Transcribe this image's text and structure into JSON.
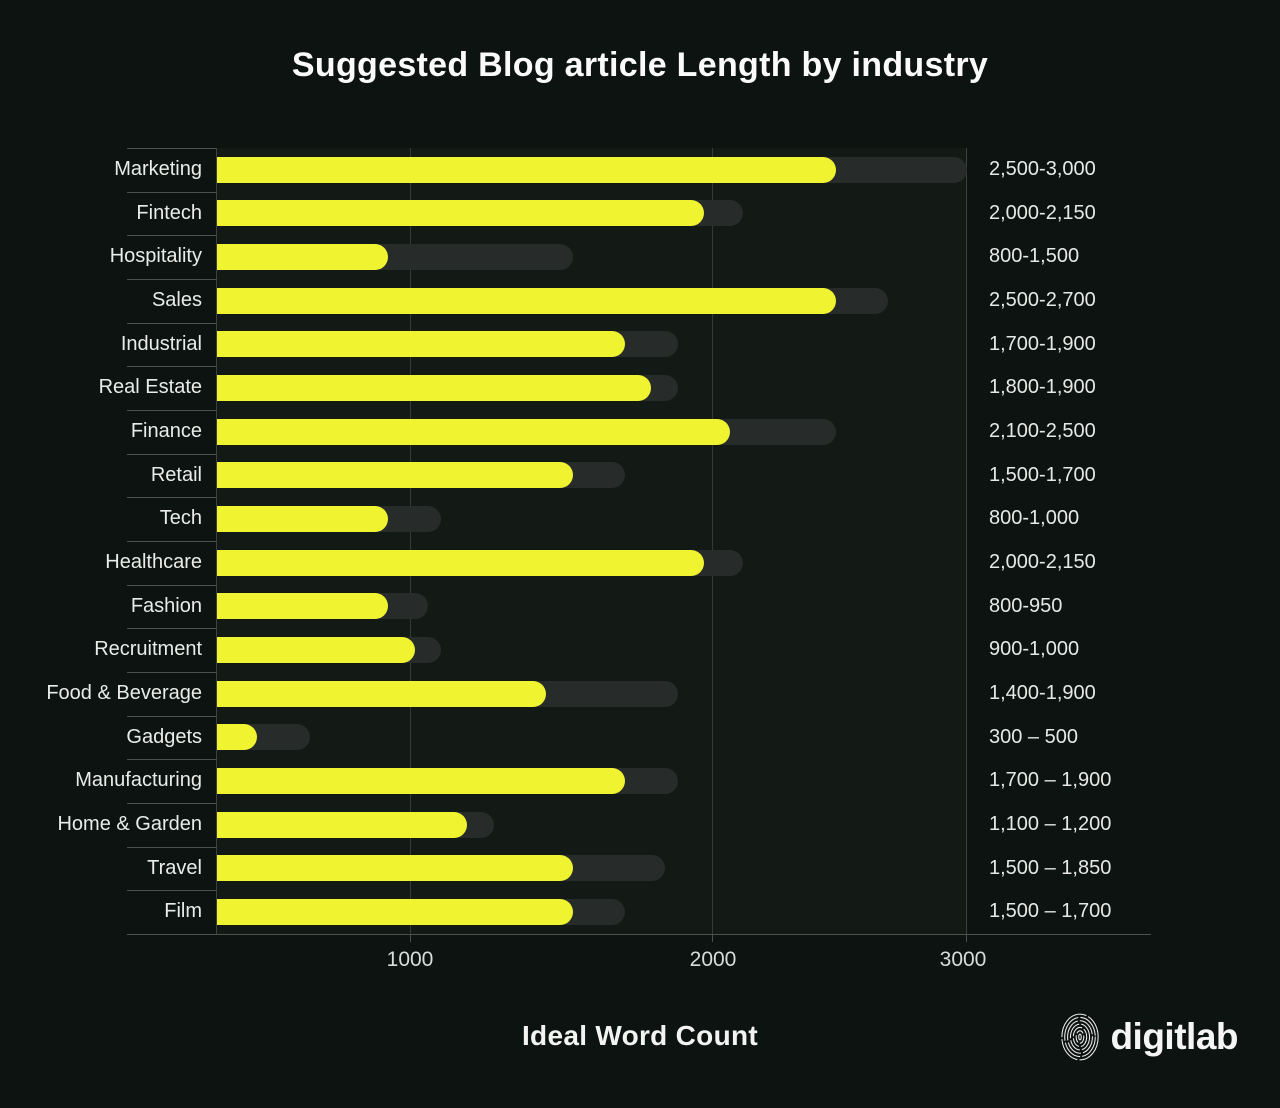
{
  "chart_data": {
    "type": "bar",
    "orientation": "horizontal",
    "title": "Suggested Blog article Length by industry",
    "xlabel": "Ideal Word Count",
    "x_ticks": [
      "1000",
      "2000",
      "3000"
    ],
    "x_axis_range_words": [
      0,
      3000
    ],
    "grid": true,
    "value_unit": "words",
    "rows": [
      {
        "industry": "Marketing",
        "range_label": "2,500-3,000",
        "min_words": 2500,
        "max_words": 3000
      },
      {
        "industry": "Fintech",
        "range_label": "2,000-2,150",
        "min_words": 2000,
        "max_words": 2150
      },
      {
        "industry": "Hospitality",
        "range_label": "800-1,500",
        "min_words": 800,
        "max_words": 1500
      },
      {
        "industry": "Sales",
        "range_label": "2,500-2,700",
        "min_words": 2500,
        "max_words": 2700
      },
      {
        "industry": "Industrial",
        "range_label": "1,700-1,900",
        "min_words": 1700,
        "max_words": 1900
      },
      {
        "industry": "Real Estate",
        "range_label": "1,800-1,900",
        "min_words": 1800,
        "max_words": 1900
      },
      {
        "industry": "Finance",
        "range_label": "2,100-2,500",
        "min_words": 2100,
        "max_words": 2500
      },
      {
        "industry": "Retail",
        "range_label": "1,500-1,700",
        "min_words": 1500,
        "max_words": 1700
      },
      {
        "industry": "Tech",
        "range_label": "800-1,000",
        "min_words": 800,
        "max_words": 1000
      },
      {
        "industry": "Healthcare",
        "range_label": "2,000-2,150",
        "min_words": 2000,
        "max_words": 2150
      },
      {
        "industry": "Fashion",
        "range_label": "800-950",
        "min_words": 800,
        "max_words": 950
      },
      {
        "industry": "Recruitment",
        "range_label": "900-1,000",
        "min_words": 900,
        "max_words": 1000
      },
      {
        "industry": "Food & Beverage",
        "range_label": "1,400-1,900",
        "min_words": 1400,
        "max_words": 1900
      },
      {
        "industry": "Gadgets",
        "range_label": "300 – 500",
        "min_words": 300,
        "max_words": 500
      },
      {
        "industry": "Manufacturing",
        "range_label": "1,700 – 1,900",
        "min_words": 1700,
        "max_words": 1900
      },
      {
        "industry": "Home & Garden",
        "range_label": "1,100 – 1,200",
        "min_words": 1100,
        "max_words": 1200
      },
      {
        "industry": "Travel",
        "range_label": "1,500 – 1,850",
        "min_words": 1500,
        "max_words": 1850
      },
      {
        "industry": "Film",
        "range_label": "1,500 – 1,700",
        "min_words": 1500,
        "max_words": 1700
      }
    ],
    "colors": {
      "min_bar": "#F0F32F",
      "max_bar": "#272B29",
      "background": "#0D1311",
      "plot_panel": "#131915",
      "text": "#E9ECE9"
    }
  },
  "logo": {
    "text": "digitlab",
    "icon": "fingerprint"
  }
}
